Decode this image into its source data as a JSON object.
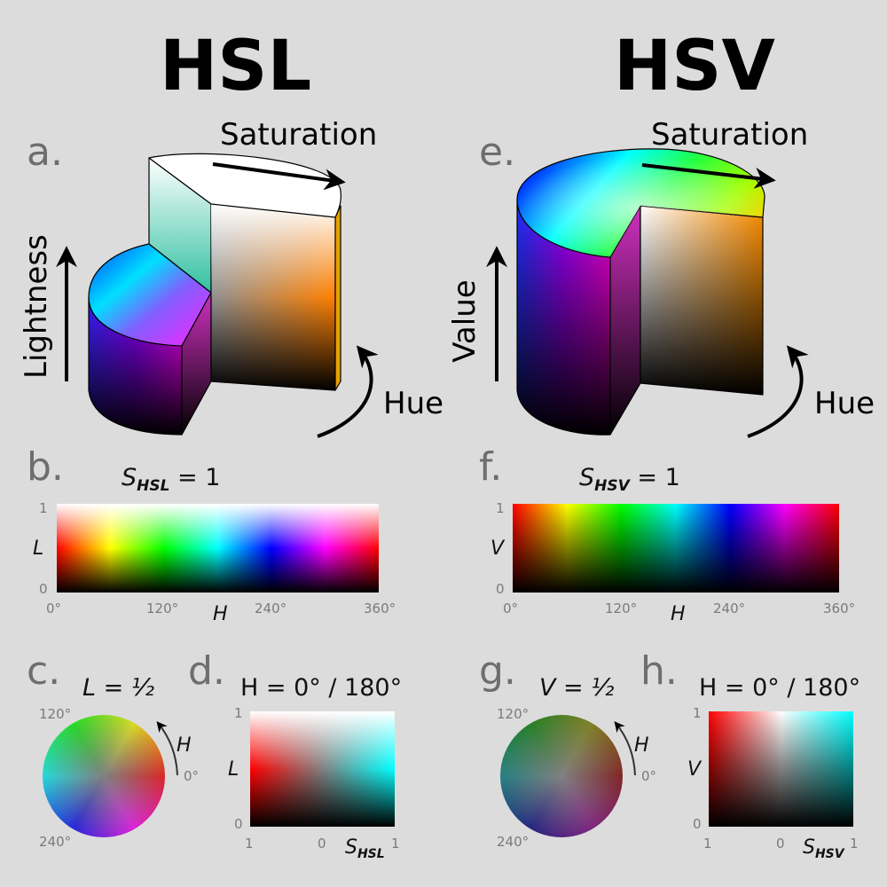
{
  "hsl": {
    "title": "HSL",
    "panel_a": "a.",
    "saturation": "Saturation",
    "lightness": "Lightness",
    "hue": "Hue",
    "panel_b": "b.",
    "b_caption": {
      "var": "S",
      "sub": "HSL",
      "eq": " = 1"
    },
    "b_y_label": "L",
    "b_y_ticks": [
      "1",
      "0"
    ],
    "b_x_label": "H",
    "b_x_ticks": [
      "0°",
      "120°",
      "240°",
      "360°"
    ],
    "panel_c": "c.",
    "c_caption": "L = ½",
    "c_angles": [
      "120°",
      "0°",
      "240°"
    ],
    "c_arrow_label": "H",
    "panel_d": "d.",
    "d_caption": "H = 0° / 180°",
    "d_y_label": "L",
    "d_y_ticks": [
      "1",
      "0"
    ],
    "d_x_ticks": [
      "1",
      "0",
      "1"
    ],
    "d_x_label": {
      "var": "S",
      "sub": "HSL"
    }
  },
  "hsv": {
    "title": "HSV",
    "panel_e": "e.",
    "saturation": "Saturation",
    "value": "Value",
    "hue": "Hue",
    "panel_f": "f.",
    "f_caption": {
      "var": "S",
      "sub": "HSV",
      "eq": " = 1"
    },
    "f_y_label": "V",
    "f_y_ticks": [
      "1",
      "0"
    ],
    "f_x_label": "H",
    "f_x_ticks": [
      "0°",
      "120°",
      "240°",
      "360°"
    ],
    "panel_g": "g.",
    "g_caption": "V = ½",
    "g_angles": [
      "120°",
      "0°",
      "240°"
    ],
    "g_arrow_label": "H",
    "panel_h": "h.",
    "h_caption": "H = 0° / 180°",
    "h_y_label": "V",
    "h_y_ticks": [
      "1",
      "0"
    ],
    "h_x_ticks": [
      "1",
      "0",
      "1"
    ],
    "h_x_label": {
      "var": "S",
      "sub": "HSV"
    }
  },
  "colors": {
    "background": "#dcdcdc",
    "panel_letter": "#6e6e6e",
    "tick": "#7a7a7a"
  }
}
